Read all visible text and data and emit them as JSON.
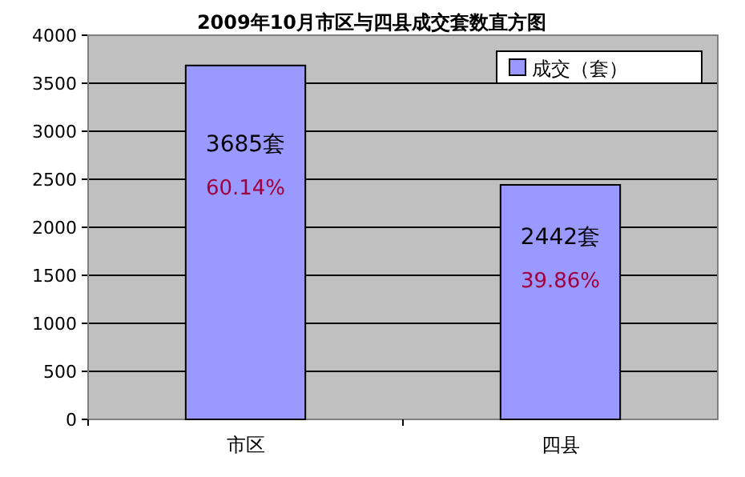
{
  "chart_data": {
    "type": "bar",
    "title": "2009年10月市区与四县成交套数直方图",
    "categories": [
      "市区",
      "四县"
    ],
    "series": [
      {
        "name": "成交（套）",
        "color": "#9999ff",
        "values": [
          3685,
          2442
        ],
        "value_labels": [
          "3685套",
          "2442套"
        ]
      }
    ],
    "ylim": [
      0,
      4000
    ],
    "yticks": [
      0,
      500,
      1000,
      1500,
      2000,
      2500,
      3000,
      3500,
      4000
    ],
    "grid": "y",
    "legend": "top right",
    "annotations": [
      "60.14%",
      "39.86%"
    ]
  }
}
